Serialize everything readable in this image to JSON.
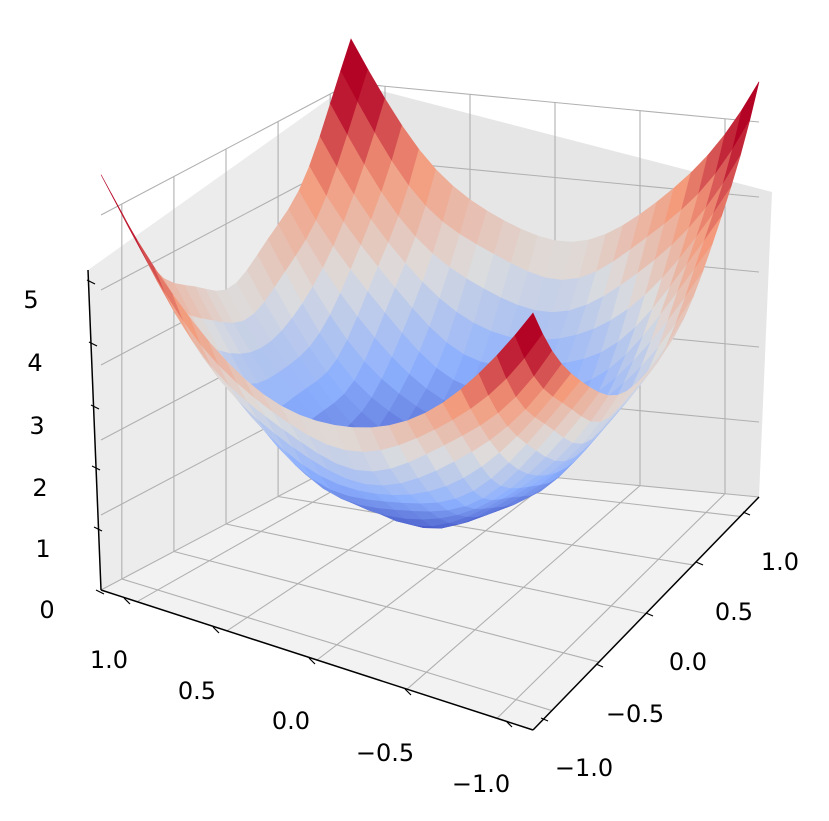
{
  "chart_data": {
    "type": "surface3d",
    "colormap": "coolwarm",
    "colormap_stops": [
      "#3b4cc0",
      "#8db0fe",
      "#dddddd",
      "#f49a7b",
      "#b40426"
    ],
    "title": "",
    "xlabel": "",
    "ylabel": "",
    "zlabel": "",
    "x_ticks": [
      "1.0",
      "0.5",
      "0.0",
      "−0.5",
      "−1.0"
    ],
    "y_ticks": [
      "1.0",
      "0.5",
      "0.0",
      "−0.5",
      "−1.0"
    ],
    "z_ticks": [
      "0",
      "1",
      "2",
      "3",
      "4",
      "5"
    ],
    "xlim": [
      -1.2,
      1.2
    ],
    "ylim": [
      -1.2,
      1.2
    ],
    "zlim": [
      0,
      5
    ],
    "grid": true,
    "surface": {
      "x_range": [
        -1.2,
        1.2
      ],
      "y_range": [
        -1.2,
        1.2
      ],
      "samples": 24,
      "formula": "z = 0.8 + 1.65*(x^2 + y^2), faceted",
      "z_min": 0.8,
      "z_max": 5.0
    }
  }
}
